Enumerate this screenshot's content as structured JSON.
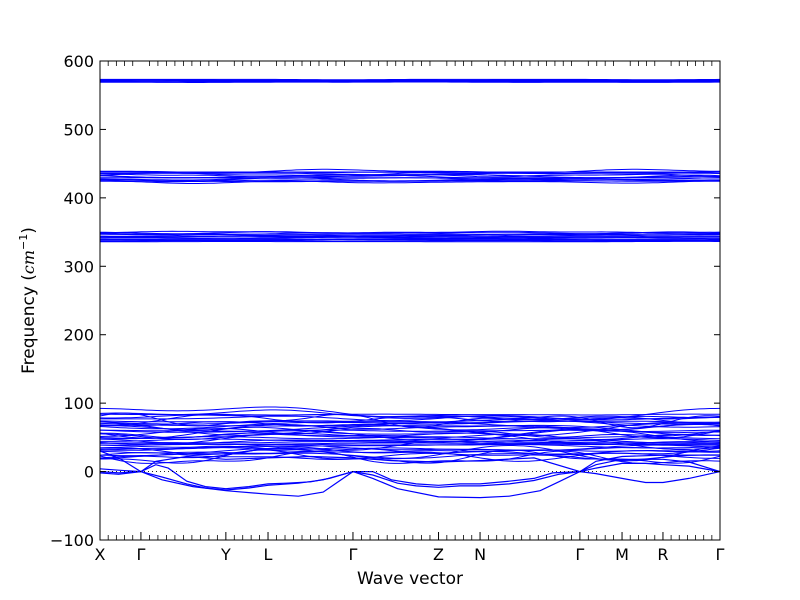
{
  "chart_data": {
    "type": "line",
    "xlabel": "Wave vector",
    "ylabel": {
      "prefix": "Frequency (",
      "unit_base": "cm",
      "unit_exp": "−1",
      "suffix": ")"
    },
    "ylim": [
      -100,
      600
    ],
    "yticks": [
      -100,
      0,
      100,
      200,
      300,
      400,
      500,
      600
    ],
    "xlim": [
      0,
      100
    ],
    "high_symmetry_points": [
      {
        "label": "X",
        "x": 0
      },
      {
        "label": "Γ",
        "x": 6.6
      },
      {
        "label": "Y",
        "x": 20.3
      },
      {
        "label": "L",
        "x": 27.1
      },
      {
        "label": "Γ",
        "x": 40.8
      },
      {
        "label": "Z",
        "x": 54.6
      },
      {
        "label": "N",
        "x": 61.3
      },
      {
        "label": "Γ",
        "x": 77.4
      },
      {
        "label": "M",
        "x": 84.2
      },
      {
        "label": "R",
        "x": 90.8
      },
      {
        "label": "Γ",
        "x": 100
      }
    ],
    "zero_line": true,
    "line_color": "#0000ff",
    "band_groups": [
      {
        "center": 571,
        "halfwidth": 2,
        "count": 6
      },
      {
        "center": 431,
        "halfwidth": 8,
        "count": 14
      },
      {
        "center": 343,
        "halfwidth": 7,
        "count": 14
      },
      {
        "center": 52,
        "halfwidth": 33,
        "count": 40
      }
    ],
    "acoustic_branches": [
      {
        "name": "",
        "points": [
          [
            0,
            4
          ],
          [
            3,
            2
          ],
          [
            6.6,
            0
          ],
          [
            9,
            10
          ],
          [
            11,
            5
          ],
          [
            14,
            -14
          ],
          [
            17,
            -22
          ],
          [
            20.3,
            -25
          ],
          [
            24,
            -22
          ],
          [
            27.1,
            -18
          ],
          [
            30,
            -17
          ],
          [
            34,
            -15
          ],
          [
            37,
            -10
          ],
          [
            40.8,
            0
          ],
          [
            44,
            0
          ],
          [
            47,
            -12
          ],
          [
            51,
            -18
          ],
          [
            54.6,
            -20
          ],
          [
            58,
            -18
          ],
          [
            61.3,
            -18
          ],
          [
            66,
            -14
          ],
          [
            70,
            -10
          ],
          [
            73,
            -2
          ],
          [
            77.4,
            0
          ],
          [
            80,
            5
          ],
          [
            84.2,
            12
          ],
          [
            88,
            12
          ],
          [
            90.8,
            10
          ],
          [
            95,
            8
          ],
          [
            100,
            0
          ]
        ]
      },
      {
        "name": "",
        "points": [
          [
            0,
            0
          ],
          [
            3,
            -2
          ],
          [
            6.6,
            0
          ],
          [
            10,
            -8
          ],
          [
            14,
            -18
          ],
          [
            17,
            -24
          ],
          [
            20.3,
            -27
          ],
          [
            24,
            -24
          ],
          [
            27.1,
            -20
          ],
          [
            32,
            -17
          ],
          [
            36,
            -12
          ],
          [
            40.8,
            0
          ],
          [
            44,
            -5
          ],
          [
            48,
            -17
          ],
          [
            51,
            -21
          ],
          [
            54.6,
            -23
          ],
          [
            58,
            -21
          ],
          [
            61.3,
            -21
          ],
          [
            66,
            -18
          ],
          [
            70,
            -13
          ],
          [
            74,
            -4
          ],
          [
            77.4,
            0
          ],
          [
            80,
            -3
          ],
          [
            84.2,
            -10
          ],
          [
            88,
            -16
          ],
          [
            90.8,
            -16
          ],
          [
            95,
            -10
          ],
          [
            100,
            0
          ]
        ]
      },
      {
        "name": "",
        "points": [
          [
            0,
            -2
          ],
          [
            3,
            -4
          ],
          [
            6.6,
            0
          ],
          [
            10,
            -12
          ],
          [
            15,
            -22
          ],
          [
            20.3,
            -28
          ],
          [
            27.1,
            -33
          ],
          [
            32,
            -36
          ],
          [
            36,
            -30
          ],
          [
            40.8,
            0
          ],
          [
            44,
            -10
          ],
          [
            48,
            -25
          ],
          [
            54.6,
            -37
          ],
          [
            61.3,
            -38
          ],
          [
            66,
            -36
          ],
          [
            71,
            -28
          ],
          [
            74,
            -15
          ],
          [
            77.4,
            0
          ],
          [
            80,
            10
          ],
          [
            84.2,
            18
          ],
          [
            90.8,
            18
          ],
          [
            95,
            14
          ],
          [
            100,
            0
          ]
        ]
      },
      {
        "name": "",
        "points": [
          [
            0,
            30
          ],
          [
            3,
            20
          ],
          [
            6.6,
            0
          ],
          [
            9,
            15
          ],
          [
            14,
            22
          ],
          [
            20.3,
            18
          ],
          [
            27.1,
            20
          ],
          [
            34,
            22
          ],
          [
            40.8,
            20
          ],
          [
            47,
            16
          ],
          [
            54.6,
            14
          ],
          [
            61.3,
            16
          ],
          [
            70,
            20
          ],
          [
            77.4,
            0
          ],
          [
            80,
            15
          ],
          [
            84.2,
            22
          ],
          [
            90.8,
            24
          ],
          [
            100,
            24
          ]
        ]
      }
    ]
  }
}
